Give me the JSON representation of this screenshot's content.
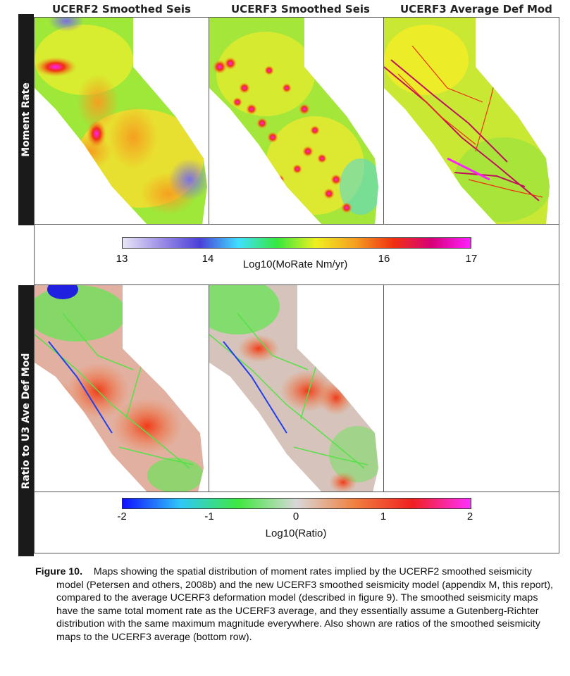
{
  "figure": {
    "column_titles": [
      "UCERF2 Smoothed Seis",
      "UCERF3 Smoothed Seis",
      "UCERF3 Average Def Mod"
    ],
    "row_labels": [
      "Moment Rate",
      "Ratio to U3 Ave Def Mod"
    ],
    "colorbar_top": {
      "ticks": [
        "13",
        "14",
        "16",
        "17"
      ],
      "label": "Log10(MoRate Nm/yr)",
      "min": 13,
      "max": 17,
      "colors": [
        "#e8e6f6",
        "#9c8ee6",
        "#4a40d8",
        "#3fe0ff",
        "#36e83c",
        "#f0f020",
        "#f5a020",
        "#f03010",
        "#d8007a",
        "#ff20ff"
      ]
    },
    "colorbar_bottom": {
      "ticks": [
        "-2",
        "-1",
        "0",
        "1",
        "2"
      ],
      "label": "Log10(Ratio)",
      "min": -2,
      "max": 2,
      "colors": [
        "#1010ff",
        "#30c8f8",
        "#40e840",
        "#d8d8d8",
        "#f08040",
        "#f02020",
        "#ff30ff"
      ]
    }
  },
  "caption": {
    "figure_label": "Figure 10.",
    "text": "Maps showing the spatial distribution of moment rates implied by the UCERF2 smoothed seismicity model (Petersen and others, 2008b) and the new UCERF3 smoothed seismicity model (appendix M, this report), compared to the average UCERF3 deformation model (described in figure 9). The smoothed seismicity maps have the same total moment rate as the UCERF3 average, and they essentially assume a Gutenberg-Richter distribution with the same maximum magnitude everywhere. Also shown are ratios of the smoothed seismicity maps to the UCERF3 average (bottom row)."
  }
}
